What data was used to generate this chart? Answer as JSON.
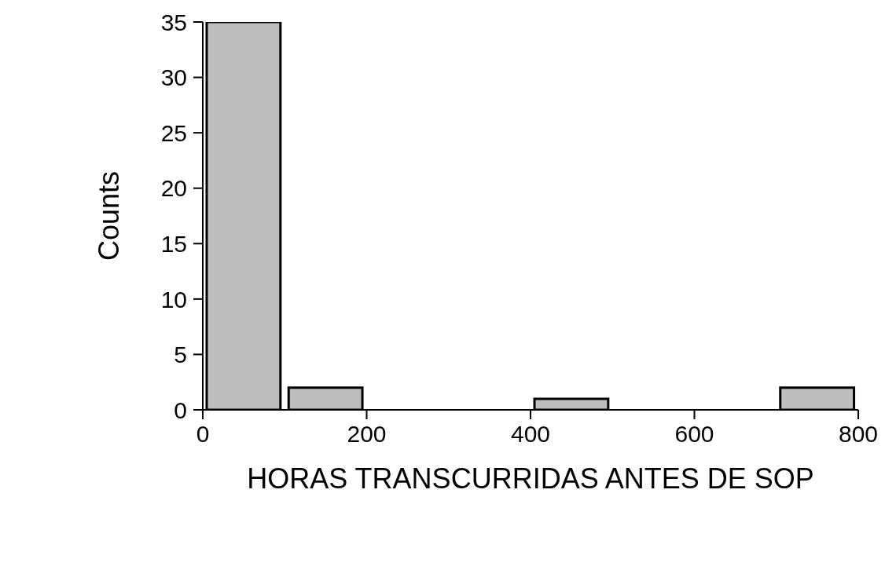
{
  "chart_data": {
    "type": "histogram",
    "xlabel": "HORAS TRANSCURRIDAS ANTES DE SOP",
    "ylabel": "Counts",
    "bins": [
      0,
      100,
      200,
      300,
      400,
      500,
      600,
      700,
      800
    ],
    "values": [
      35,
      2,
      0,
      0,
      1,
      0,
      0,
      2
    ],
    "color": "#bebebe",
    "xlim": [
      0,
      800
    ],
    "xticks": [
      0,
      200,
      400,
      600,
      800
    ],
    "ylim": [
      0,
      35
    ],
    "yticks": [
      0,
      5,
      10,
      15,
      20,
      25,
      30,
      35
    ],
    "grid": false
  }
}
